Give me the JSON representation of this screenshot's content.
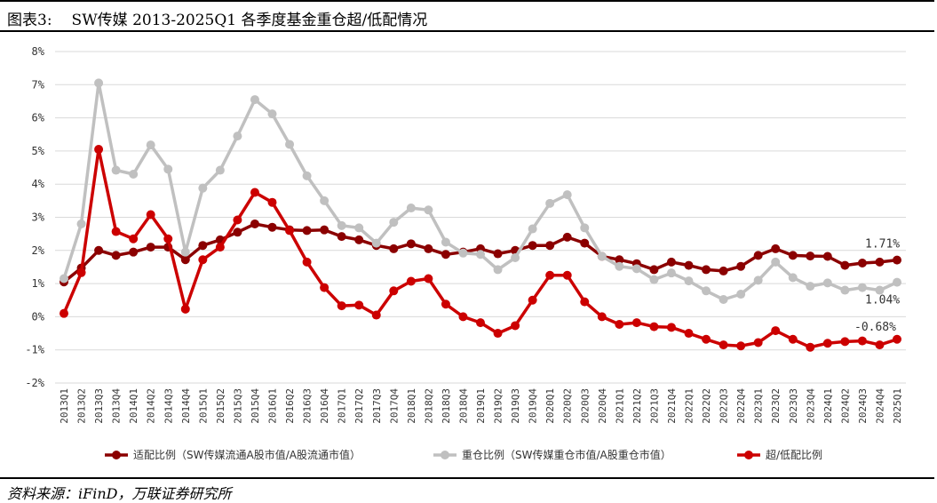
{
  "header": {
    "prefix": "图表3:",
    "title": "SW传媒 2013-2025Q1 各季度基金重仓超/低配情况"
  },
  "footer": {
    "source": "资料来源：iFinD，万联证券研究所"
  },
  "chart_data": {
    "type": "line",
    "x": [
      "2013Q1",
      "2013Q2",
      "2013Q3",
      "2013Q4",
      "2014Q1",
      "2014Q2",
      "2014Q3",
      "2014Q4",
      "2015Q1",
      "2015Q2",
      "2015Q3",
      "2015Q4",
      "2016Q1",
      "2016Q2",
      "2016Q3",
      "2016Q4",
      "2017Q1",
      "2017Q2",
      "2017Q3",
      "2017Q4",
      "2018Q1",
      "2018Q2",
      "2018Q3",
      "2018Q4",
      "2019Q1",
      "2019Q2",
      "2019Q3",
      "2019Q4",
      "2020Q1",
      "2020Q2",
      "2020Q3",
      "2020Q4",
      "2021Q1",
      "2021Q2",
      "2021Q3",
      "2021Q4",
      "2022Q1",
      "2022Q2",
      "2022Q3",
      "2022Q4",
      "2023Q1",
      "2023Q2",
      "2023Q3",
      "2023Q4",
      "2024Q1",
      "2024Q2",
      "2024Q3",
      "2024Q4",
      "2025Q1"
    ],
    "yticks": [
      "8%",
      "7%",
      "6%",
      "5%",
      "4%",
      "3%",
      "2%",
      "1%",
      "0%",
      "-1%",
      "-2%"
    ],
    "ylim": [
      -2,
      8
    ],
    "legend_position": "bottom",
    "grid": true,
    "series": [
      {
        "name": "适配比例（SW传媒流通A股市值/A股流通市值）",
        "color": "#8b0000",
        "values": [
          1.05,
          1.47,
          2.0,
          1.85,
          1.95,
          2.1,
          2.1,
          1.72,
          2.15,
          2.32,
          2.55,
          2.8,
          2.7,
          2.62,
          2.6,
          2.62,
          2.42,
          2.32,
          2.15,
          2.05,
          2.2,
          2.05,
          1.88,
          1.95,
          2.05,
          1.9,
          2.0,
          2.15,
          2.15,
          2.4,
          2.22,
          1.82,
          1.72,
          1.6,
          1.42,
          1.65,
          1.55,
          1.42,
          1.38,
          1.52,
          1.85,
          2.05,
          1.85,
          1.83,
          1.82,
          1.55,
          1.62,
          1.65,
          1.71
        ]
      },
      {
        "name": "重仓比例（SW传媒重仓市值/A股重仓市值）",
        "color": "#c0c0c0",
        "values": [
          1.15,
          2.8,
          7.05,
          4.42,
          4.3,
          5.18,
          4.45,
          1.95,
          3.88,
          4.42,
          5.45,
          6.55,
          6.12,
          5.2,
          4.25,
          3.5,
          2.75,
          2.68,
          2.22,
          2.85,
          3.28,
          3.22,
          2.25,
          1.92,
          1.88,
          1.42,
          1.78,
          2.65,
          3.42,
          3.68,
          2.68,
          1.82,
          1.52,
          1.45,
          1.12,
          1.32,
          1.08,
          0.78,
          0.52,
          0.68,
          1.1,
          1.65,
          1.18,
          0.92,
          1.02,
          0.8,
          0.88,
          0.8,
          1.04
        ]
      },
      {
        "name": "超/低配比例",
        "color": "#cc0000",
        "values": [
          0.1,
          1.33,
          5.05,
          2.57,
          2.35,
          3.08,
          2.35,
          0.23,
          1.72,
          2.1,
          2.92,
          3.75,
          3.45,
          2.6,
          1.65,
          0.88,
          0.33,
          0.35,
          0.05,
          0.78,
          1.07,
          1.15,
          0.38,
          0.0,
          -0.18,
          -0.5,
          -0.27,
          0.5,
          1.25,
          1.25,
          0.45,
          -0.0,
          -0.23,
          -0.18,
          -0.3,
          -0.32,
          -0.5,
          -0.68,
          -0.85,
          -0.88,
          -0.78,
          -0.42,
          -0.68,
          -0.92,
          -0.8,
          -0.75,
          -0.73,
          -0.85,
          -0.68
        ]
      }
    ],
    "annotations": [
      {
        "text": "1.71%",
        "series": 0
      },
      {
        "text": "1.04%",
        "series": 1
      },
      {
        "text": "-0.68%",
        "series": 2
      }
    ]
  }
}
